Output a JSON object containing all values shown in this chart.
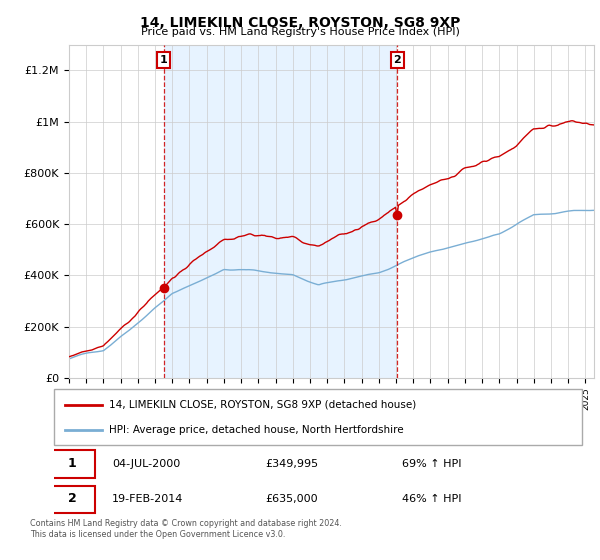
{
  "title": "14, LIMEKILN CLOSE, ROYSTON, SG8 9XP",
  "subtitle": "Price paid vs. HM Land Registry's House Price Index (HPI)",
  "hpi_label": "HPI: Average price, detached house, North Hertfordshire",
  "price_label": "14, LIMEKILN CLOSE, ROYSTON, SG8 9XP (detached house)",
  "sale1_date": "04-JUL-2000",
  "sale1_price": 349995,
  "sale1_hpi": "69% ↑ HPI",
  "sale2_date": "19-FEB-2014",
  "sale2_price": 635000,
  "sale2_hpi": "46% ↑ HPI",
  "footnote": "Contains HM Land Registry data © Crown copyright and database right 2024.\nThis data is licensed under the Open Government Licence v3.0.",
  "price_color": "#cc0000",
  "hpi_color": "#7aaed4",
  "sale_marker_color": "#cc0000",
  "fill_color": "#ddeeff",
  "ylim": [
    0,
    1300000
  ],
  "yticks": [
    0,
    200000,
    400000,
    600000,
    800000,
    1000000,
    1200000
  ],
  "ytick_labels": [
    "£0",
    "£200K",
    "£400K",
    "£600K",
    "£800K",
    "£1M",
    "£1.2M"
  ],
  "xstart": 1995,
  "xend": 2025.5,
  "sale1_x": 2000.5,
  "sale2_x": 2014.083
}
